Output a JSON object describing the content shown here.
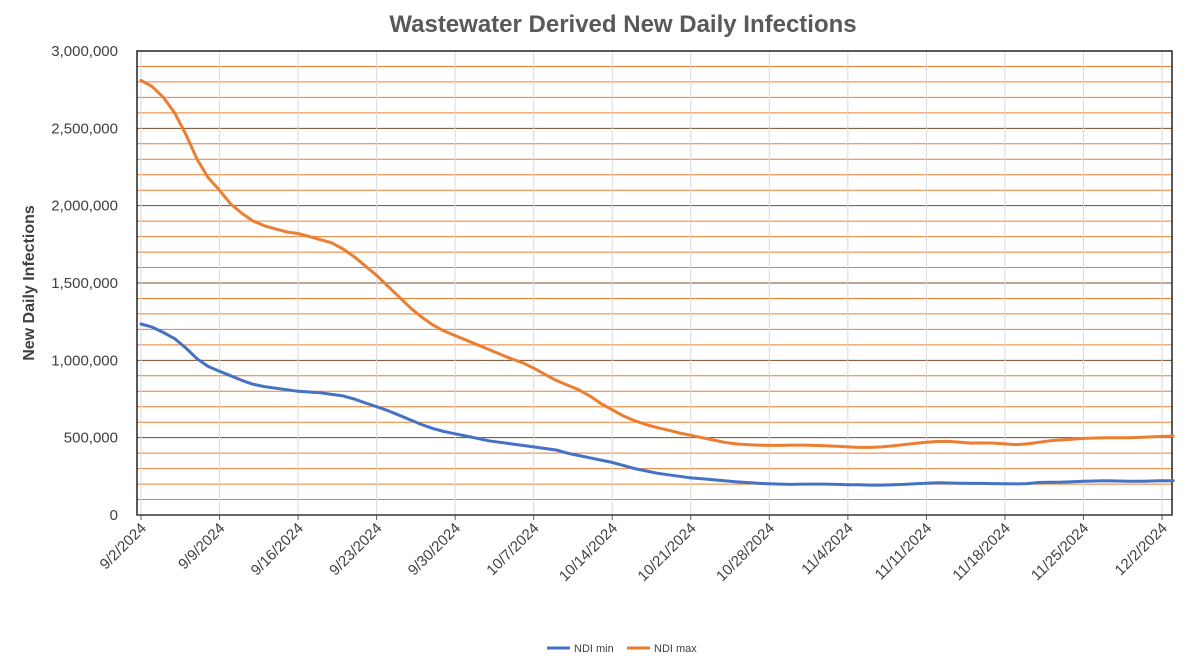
{
  "chart_data": {
    "type": "line",
    "title": "Wastewater Derived New Daily Infections",
    "xlabel": "",
    "ylabel": "New Daily Infections",
    "ylim": [
      0,
      3000000
    ],
    "y_ticks": [
      0,
      500000,
      1000000,
      1500000,
      2000000,
      2500000,
      3000000
    ],
    "y_tick_labels": [
      "0",
      "500,000",
      "1,000,000",
      "1,500,000",
      "2,000,000",
      "2,500,000",
      "3,000,000"
    ],
    "x_start": "9/2/2024",
    "x_end": "12/2/2024",
    "x_tick_labels": [
      "9/2/2024",
      "9/9/2024",
      "9/16/2024",
      "9/23/2024",
      "9/30/2024",
      "10/7/2024",
      "10/14/2024",
      "10/21/2024",
      "10/28/2024",
      "11/4/2024",
      "11/11/2024",
      "11/18/2024",
      "11/25/2024",
      "12/2/2024"
    ],
    "x_tick_days": [
      0,
      7,
      14,
      21,
      28,
      35,
      42,
      49,
      56,
      63,
      70,
      77,
      84,
      91
    ],
    "grid": true,
    "legend_position": "bottom",
    "colors": {
      "grid_major": "#7a4a28",
      "grid_minor": "#ed7d31",
      "vertical_grid": "#d9d9d9"
    },
    "series": [
      {
        "name": "NDI min",
        "color": "#4472c4",
        "x": [
          0,
          1,
          2,
          3,
          4,
          5,
          6,
          7,
          8,
          9,
          10,
          11,
          12,
          13,
          14,
          15,
          16,
          17,
          18,
          19,
          20,
          21,
          22,
          23,
          24,
          25,
          26,
          27,
          28,
          29,
          30,
          31,
          32,
          33,
          34,
          35,
          36,
          37,
          38,
          39,
          40,
          41,
          42,
          43,
          44,
          45,
          46,
          47,
          48,
          49,
          50,
          51,
          52,
          53,
          54,
          55,
          56,
          57,
          58,
          59,
          60,
          61,
          62,
          63,
          64,
          65,
          66,
          67,
          68,
          69,
          70,
          71,
          72,
          73,
          74,
          75,
          76,
          77,
          78,
          79,
          80,
          81,
          82,
          83,
          84,
          85,
          86,
          87,
          88,
          89,
          90,
          91,
          92
        ],
        "values": [
          1235000,
          1215000,
          1180000,
          1140000,
          1080000,
          1010000,
          960000,
          930000,
          900000,
          870000,
          845000,
          830000,
          820000,
          810000,
          800000,
          795000,
          790000,
          780000,
          770000,
          750000,
          725000,
          700000,
          675000,
          645000,
          615000,
          585000,
          560000,
          540000,
          525000,
          510000,
          495000,
          480000,
          470000,
          460000,
          450000,
          440000,
          430000,
          420000,
          400000,
          385000,
          370000,
          355000,
          340000,
          320000,
          300000,
          285000,
          270000,
          260000,
          250000,
          240000,
          235000,
          228000,
          222000,
          215000,
          210000,
          205000,
          202000,
          200000,
          198000,
          200000,
          200000,
          200000,
          198000,
          196000,
          195000,
          193000,
          193000,
          195000,
          198000,
          202000,
          205000,
          208000,
          207000,
          205000,
          204000,
          204000,
          203000,
          202000,
          201000,
          203000,
          210000,
          212000,
          213000,
          215000,
          218000,
          220000,
          222000,
          220000,
          218000,
          218000,
          220000,
          222000,
          222000
        ]
      },
      {
        "name": "NDI max",
        "color": "#ed7d31",
        "x": [
          0,
          1,
          2,
          3,
          4,
          5,
          6,
          7,
          8,
          9,
          10,
          11,
          12,
          13,
          14,
          15,
          16,
          17,
          18,
          19,
          20,
          21,
          22,
          23,
          24,
          25,
          26,
          27,
          28,
          29,
          30,
          31,
          32,
          33,
          34,
          35,
          36,
          37,
          38,
          39,
          40,
          41,
          42,
          43,
          44,
          45,
          46,
          47,
          48,
          49,
          50,
          51,
          52,
          53,
          54,
          55,
          56,
          57,
          58,
          59,
          60,
          61,
          62,
          63,
          64,
          65,
          66,
          67,
          68,
          69,
          70,
          71,
          72,
          73,
          74,
          75,
          76,
          77,
          78,
          79,
          80,
          81,
          82,
          83,
          84,
          85,
          86,
          87,
          88,
          89,
          90,
          91,
          92
        ],
        "values": [
          2810000,
          2770000,
          2700000,
          2600000,
          2460000,
          2300000,
          2180000,
          2100000,
          2010000,
          1950000,
          1900000,
          1870000,
          1850000,
          1830000,
          1820000,
          1800000,
          1780000,
          1760000,
          1720000,
          1670000,
          1610000,
          1550000,
          1480000,
          1410000,
          1340000,
          1280000,
          1230000,
          1190000,
          1160000,
          1130000,
          1100000,
          1070000,
          1040000,
          1010000,
          985000,
          950000,
          910000,
          870000,
          840000,
          810000,
          770000,
          720000,
          680000,
          640000,
          610000,
          585000,
          565000,
          548000,
          530000,
          515000,
          500000,
          485000,
          470000,
          460000,
          455000,
          452000,
          450000,
          450000,
          452000,
          452000,
          450000,
          448000,
          445000,
          440000,
          437000,
          437000,
          440000,
          447000,
          455000,
          463000,
          470000,
          475000,
          476000,
          470000,
          465000,
          466000,
          465000,
          460000,
          455000,
          460000,
          470000,
          480000,
          485000,
          490000,
          495000,
          498000,
          500000,
          500000,
          500000,
          502000,
          505000,
          508000,
          510000
        ]
      }
    ]
  }
}
